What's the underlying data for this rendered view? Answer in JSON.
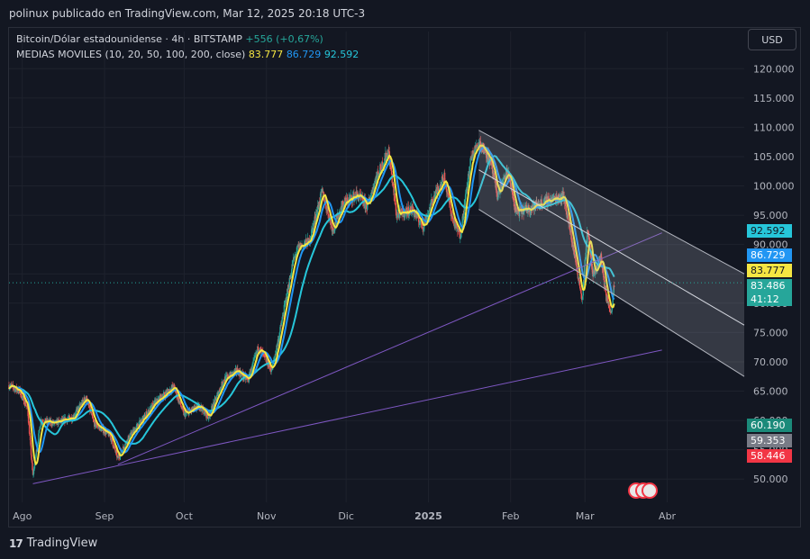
{
  "header": {
    "published": "polinux publicado en TradingView.com, Mar 12, 2025 20:18 UTC-3"
  },
  "legend": {
    "symbol": "Bitcoin/Dólar estadounidense · 4h · BITSTAMP",
    "change": "+556 (+0,67%)",
    "ma_label": "MEDIAS MOVILES (10, 20, 50, 100, 200, close)",
    "ma10": "83.777",
    "ma20": "86.729",
    "ma50": "92.592"
  },
  "currency_button": "USD",
  "footer": {
    "brand": "TradingView",
    "brand_mark": "17"
  },
  "price_tags": {
    "ma50": "92.592",
    "ma20": "86.729",
    "ma10": "83.777",
    "last": "83.486",
    "countdown": "41:12",
    "level1": "60.190",
    "level2": "59.353",
    "level3": "58.446"
  },
  "colors": {
    "background": "#131722",
    "up": "#26a69a",
    "down": "#ef5350",
    "ma10": "#f5e642",
    "ma20": "#2196f3",
    "ma50": "#26c6da",
    "trendline": "#7e57c2",
    "channel": "#b2b5be"
  },
  "chart_data": {
    "type": "candlestick",
    "title": "Bitcoin/Dólar estadounidense · 4h · BITSTAMP",
    "x_ticks": [
      "Ago",
      "Sep",
      "Oct",
      "Nov",
      "Dic",
      "2025",
      "Feb",
      "Mar",
      "Abr"
    ],
    "x_tick_dates": [
      "2024-08-01",
      "2024-09-01",
      "2024-10-01",
      "2024-11-01",
      "2024-12-01",
      "2025-01-01",
      "2025-02-01",
      "2025-03-01",
      "2025-04-01"
    ],
    "y_ticks": [
      50000,
      55000,
      60000,
      65000,
      70000,
      75000,
      80000,
      85000,
      90000,
      95000,
      100000,
      105000,
      110000,
      115000,
      120000
    ],
    "y_tick_labels": [
      "50.000",
      "55.000",
      "60.000",
      "65.000",
      "70.000",
      "75.000",
      "80.000",
      "85.000",
      "90.000",
      "95.000",
      "100.000",
      "105.000",
      "110.000",
      "115.000",
      "120.000"
    ],
    "ylim": [
      46500,
      122500
    ],
    "xlim": [
      "2024-07-27",
      "2025-04-30"
    ],
    "last_price": 83486,
    "price_path": [
      [
        "2024-07-27",
        66000
      ],
      [
        "2024-07-31",
        65000
      ],
      [
        "2024-08-03",
        62000
      ],
      [
        "2024-08-05",
        50500
      ],
      [
        "2024-08-08",
        60000
      ],
      [
        "2024-08-13",
        59500
      ],
      [
        "2024-08-20",
        60500
      ],
      [
        "2024-08-25",
        64000
      ],
      [
        "2024-08-28",
        59500
      ],
      [
        "2024-09-03",
        57500
      ],
      [
        "2024-09-06",
        53500
      ],
      [
        "2024-09-10",
        57000
      ],
      [
        "2024-09-15",
        60000
      ],
      [
        "2024-09-20",
        63000
      ],
      [
        "2024-09-27",
        65800
      ],
      [
        "2024-10-01",
        61000
      ],
      [
        "2024-10-07",
        62500
      ],
      [
        "2024-10-10",
        60500
      ],
      [
        "2024-10-16",
        67000
      ],
      [
        "2024-10-21",
        68500
      ],
      [
        "2024-10-25",
        66800
      ],
      [
        "2024-10-29",
        72500
      ],
      [
        "2024-11-03",
        68500
      ],
      [
        "2024-11-06",
        75000
      ],
      [
        "2024-11-11",
        87000
      ],
      [
        "2024-11-13",
        89500
      ],
      [
        "2024-11-17",
        90500
      ],
      [
        "2024-11-22",
        99000
      ],
      [
        "2024-11-26",
        92500
      ],
      [
        "2024-11-30",
        97000
      ],
      [
        "2024-12-05",
        98500
      ],
      [
        "2024-12-09",
        96500
      ],
      [
        "2024-12-12",
        101000
      ],
      [
        "2024-12-17",
        106000
      ],
      [
        "2024-12-20",
        95000
      ],
      [
        "2024-12-26",
        96000
      ],
      [
        "2024-12-30",
        93000
      ],
      [
        "2025-01-03",
        98000
      ],
      [
        "2025-01-07",
        101500
      ],
      [
        "2025-01-10",
        94500
      ],
      [
        "2025-01-13",
        91500
      ],
      [
        "2025-01-17",
        104500
      ],
      [
        "2025-01-20",
        107500
      ],
      [
        "2025-01-24",
        104800
      ],
      [
        "2025-01-27",
        98500
      ],
      [
        "2025-01-31",
        102500
      ],
      [
        "2025-02-03",
        95500
      ],
      [
        "2025-02-08",
        96200
      ],
      [
        "2025-02-15",
        97500
      ],
      [
        "2025-02-21",
        98300
      ],
      [
        "2025-02-25",
        88500
      ],
      [
        "2025-02-28",
        80500
      ],
      [
        "2025-03-02",
        93000
      ],
      [
        "2025-03-04",
        84500
      ],
      [
        "2025-03-07",
        88000
      ],
      [
        "2025-03-09",
        81000
      ],
      [
        "2025-03-11",
        78500
      ],
      [
        "2025-03-12",
        83486
      ]
    ],
    "moving_averages": [
      {
        "name": "MA10",
        "last": 83777
      },
      {
        "name": "MA20",
        "last": 86729
      },
      {
        "name": "MA50",
        "last": 92592
      }
    ],
    "price_levels": [
      60190,
      59353,
      58446
    ],
    "annotations": [
      {
        "type": "trendline",
        "from": [
          "2024-08-05",
          49200
        ],
        "to": [
          "2025-03-30",
          72000
        ]
      },
      {
        "type": "trendline",
        "from": [
          "2024-09-06",
          52500
        ],
        "to": [
          "2025-03-30",
          92000
        ]
      },
      {
        "type": "parallel_channel",
        "upper_from": [
          "2025-01-20",
          109500
        ],
        "upper_to": [
          "2025-04-30",
          85000
        ],
        "lower_from": [
          "2025-01-20",
          96000
        ],
        "lower_to": [
          "2025-04-30",
          67500
        ]
      }
    ]
  }
}
